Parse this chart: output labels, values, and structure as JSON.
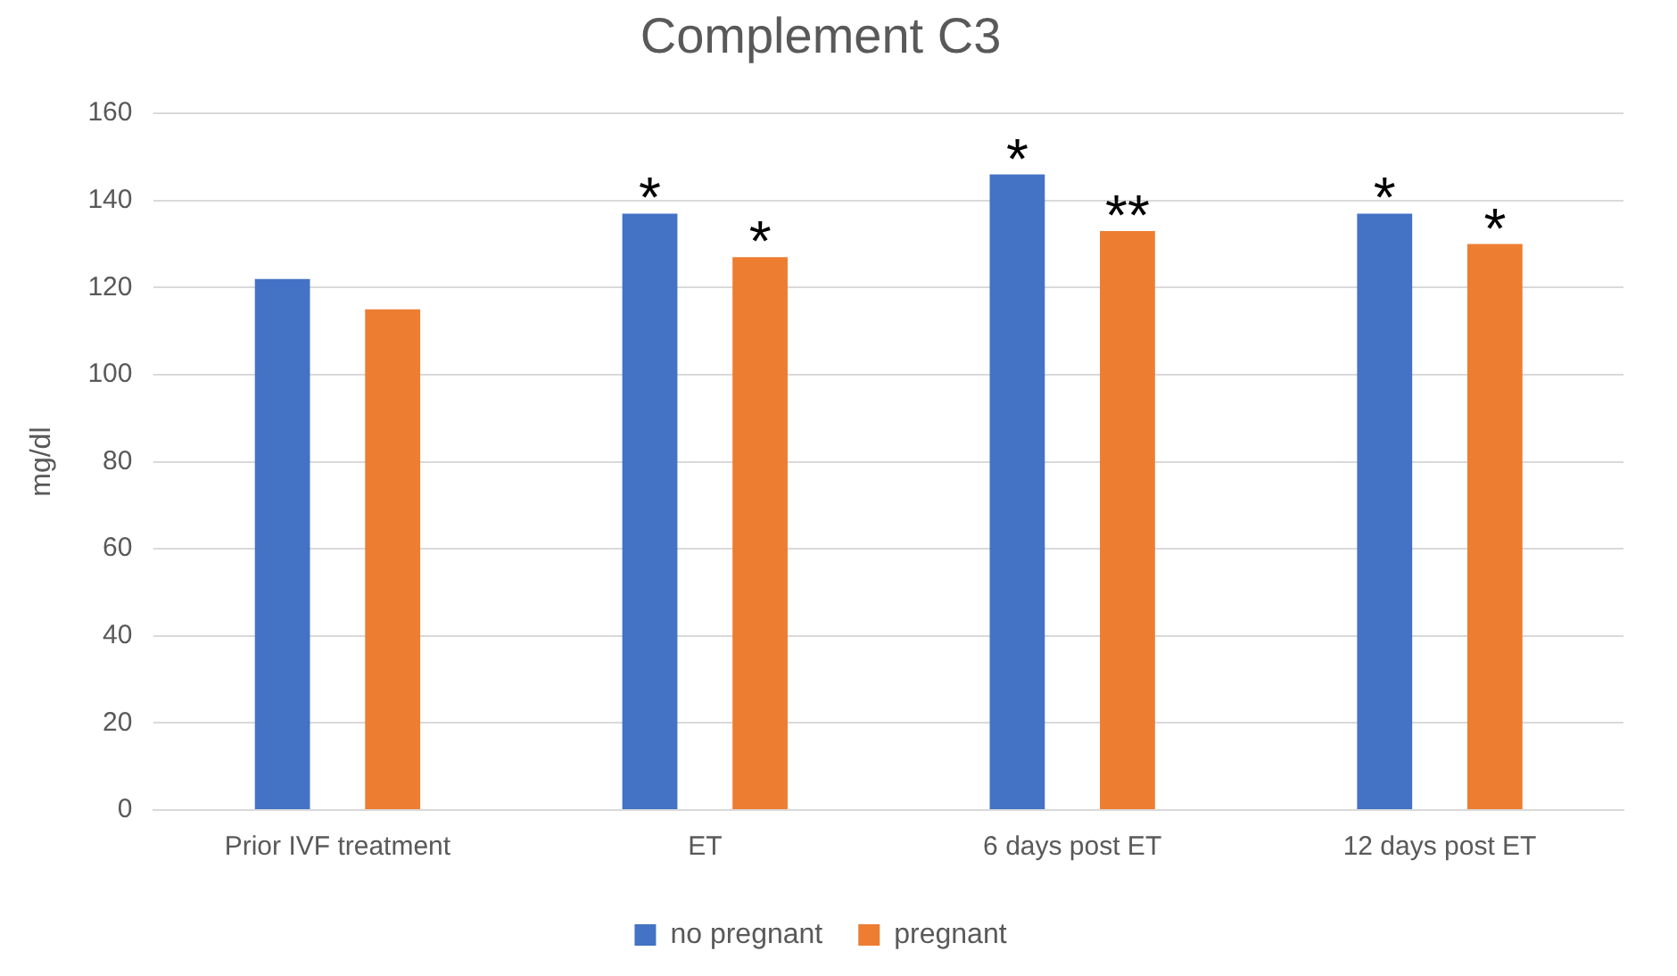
{
  "chart_data": {
    "type": "bar",
    "title": "Complement C3",
    "ylabel": "mg/dl",
    "categories": [
      "Prior IVF treatment",
      "ET",
      "6 days post ET",
      "12 days post ET"
    ],
    "series": [
      {
        "name": "no pregnant",
        "color": "#4472c4",
        "values": [
          122,
          137,
          146,
          137
        ],
        "value_labels": [
          null,
          "*",
          "*",
          "*"
        ]
      },
      {
        "name": "pregnant",
        "color": "#ed7d31",
        "values": [
          115,
          127,
          133,
          130
        ],
        "value_labels": [
          null,
          "*",
          "**",
          "*"
        ]
      }
    ],
    "ylim": [
      0,
      160
    ],
    "yticks": [
      0,
      20,
      40,
      60,
      80,
      100,
      120,
      140,
      160
    ],
    "grid": "y",
    "legend": "bottom"
  }
}
